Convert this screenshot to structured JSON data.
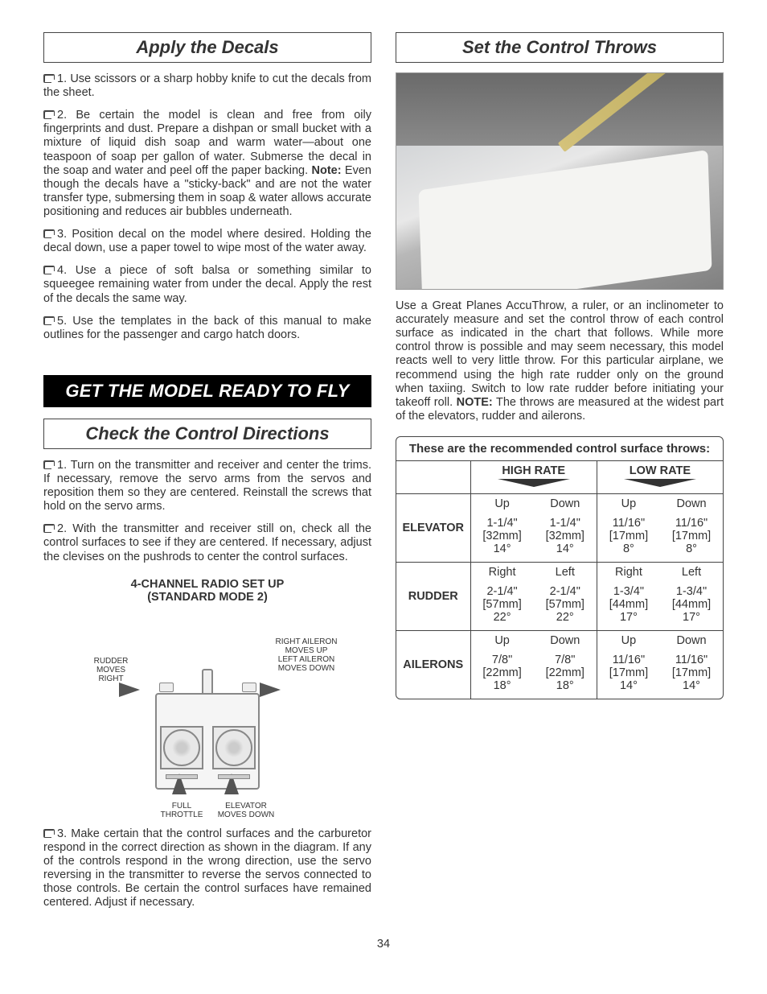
{
  "left": {
    "apply_decals_title": "Apply the Decals",
    "steps_a": [
      "1. Use scissors or a sharp hobby knife to cut the decals from the sheet.",
      "2. Be certain the model is clean and free from oily fingerprints and dust. Prepare a dishpan or small bucket with a mixture of liquid dish soap and warm water—about one teaspoon of soap per gallon of water. Submerse the decal in the soap and water and peel off the paper backing. <b>Note:</b> Even though the decals have a \"sticky-back\" and are not the water transfer type, submersing them in soap & water allows accurate positioning and reduces air bubbles underneath.",
      "3. Position decal on the model where desired. Holding the decal down, use a paper towel to wipe most of the water away.",
      "4. Use a piece of soft balsa or something similar to squeegee remaining water from under the decal. Apply the rest of the decals the same way.",
      "5. Use the templates in the back of this manual to make outlines for the passenger and cargo hatch doors."
    ],
    "get_ready_title": "GET THE MODEL READY TO FLY",
    "check_dir_title": "Check the Control Directions",
    "steps_b": [
      "1. Turn on the transmitter and receiver and center the trims. If necessary, remove the servo arms from the servos and reposition them so they are centered. Reinstall the screws that hold on the servo arms.",
      "2. With the transmitter and receiver still on, check all the control surfaces to see if they are centered. If necessary, adjust the clevises on the pushrods to center the control surfaces."
    ],
    "diagram_title1": "4-CHANNEL RADIO SET UP",
    "diagram_title2": "(STANDARD MODE 2)",
    "labels": {
      "rudder": "RUDDER\nMOVES\nRIGHT",
      "ail": "RIGHT AILERON\nMOVES UP\nLEFT AILERON\nMOVES DOWN",
      "throttle": "FULL\nTHROTTLE",
      "elevator": "ELEVATOR\nMOVES DOWN"
    },
    "step_b3": "3. Make certain that the control surfaces and the carburetor respond in the correct direction as shown in the diagram. If any of the controls respond in the wrong direction, use the servo reversing in the transmitter to reverse the servos connected to those controls. Be certain the control surfaces have remained centered. Adjust if necessary."
  },
  "right": {
    "set_throws_title": "Set the Control Throws",
    "intro": "Use a Great Planes AccuThrow, a ruler, or an inclinometer to accurately measure and set the control throw of each control surface as indicated in the chart that follows. While more control throw is possible and may seem necessary, this model reacts well to very little throw. For this particular airplane, we recommend using the high rate rudder only on the ground when taxiing. Switch to low rate rudder before initiating your takeoff roll. <b>NOTE:</b> The throws are measured at the widest part of the elevators, rudder and ailerons.",
    "table_title": "These are the recommended control surface throws:",
    "high_rate": "HIGH RATE",
    "low_rate": "LOW RATE",
    "surfaces": [
      {
        "name": "ELEVATOR",
        "dir": [
          "Up",
          "Down",
          "Up",
          "Down"
        ],
        "high": [
          "1-1/4\"<br>[32mm]<br>14°",
          "1-1/4\"<br>[32mm]<br>14°"
        ],
        "low": [
          "11/16\"<br>[17mm]<br>8°",
          "11/16\"<br>[17mm]<br>8°"
        ]
      },
      {
        "name": "RUDDER",
        "dir": [
          "Right",
          "Left",
          "Right",
          "Left"
        ],
        "high": [
          "2-1/4\"<br>[57mm]<br>22°",
          "2-1/4\"<br>[57mm]<br>22°"
        ],
        "low": [
          "1-3/4\"<br>[44mm]<br>17°",
          "1-3/4\"<br>[44mm]<br>17°"
        ]
      },
      {
        "name": "AILERONS",
        "dir": [
          "Up",
          "Down",
          "Up",
          "Down"
        ],
        "high": [
          "7/8\"<br>[22mm]<br>18°",
          "7/8\"<br>[22mm]<br>18°"
        ],
        "low": [
          "11/16\"<br>[17mm]<br>14°",
          "11/16\"<br>[17mm]<br>14°"
        ]
      }
    ]
  },
  "page_number": "34"
}
